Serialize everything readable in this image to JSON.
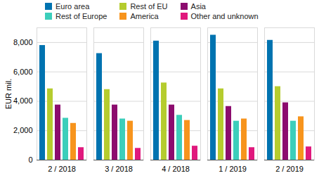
{
  "chart_data": {
    "type": "bar",
    "categories": [
      "2 / 2018",
      "3 / 2018",
      "4 / 2018",
      "1 / 2019",
      "2 / 2019"
    ],
    "series": [
      {
        "name": "Euro area",
        "color": "#0073b0",
        "values": [
          7800,
          7250,
          8100,
          8500,
          8150
        ]
      },
      {
        "name": "Rest of EU",
        "color": "#b5cc2e",
        "values": [
          4850,
          4800,
          5250,
          4850,
          5000
        ]
      },
      {
        "name": "Asia",
        "color": "#8c0c6e",
        "values": [
          3750,
          3750,
          3750,
          3650,
          3900
        ]
      },
      {
        "name": "Rest of Europe",
        "color": "#3ccebb",
        "values": [
          2850,
          2800,
          3050,
          2650,
          2650
        ]
      },
      {
        "name": "America",
        "color": "#f7941d",
        "values": [
          2500,
          2650,
          2700,
          2800,
          2950
        ]
      },
      {
        "name": "Other and unknown",
        "color": "#e0197d",
        "values": [
          850,
          800,
          950,
          850,
          900
        ]
      }
    ],
    "y_label": "EUR mil.",
    "ylim": [
      0,
      9000
    ],
    "yticks": [
      0,
      {
        "value": 2000,
        "label": "2,000"
      },
      {
        "value": 4000,
        "label": "4,000"
      },
      {
        "value": 6000,
        "label": "6,000"
      },
      {
        "value": 8000,
        "label": "8,000"
      }
    ],
    "grid": true,
    "legend": "top"
  }
}
